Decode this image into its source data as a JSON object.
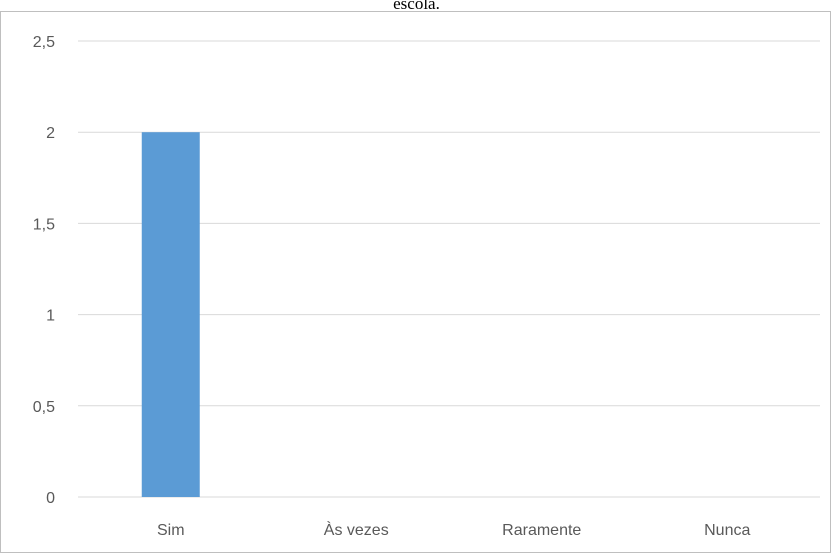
{
  "chart_data": {
    "type": "bar",
    "title": "escola.",
    "categories": [
      "Sim",
      "Às vezes",
      "Raramente",
      "Nunca"
    ],
    "values": [
      2,
      0,
      0,
      0
    ],
    "ylim": [
      0,
      2.5
    ],
    "yticks": [
      0,
      0.5,
      1,
      1.5,
      2,
      2.5
    ],
    "ytick_labels": [
      "0",
      "0,5",
      "1",
      "1,5",
      "2",
      "2,5"
    ],
    "xlabel": "",
    "ylabel": "",
    "grid": true,
    "legend": "none",
    "colors": {
      "bar": "#5b9bd5",
      "grid": "#d9d9d9",
      "axis_text": "#595959",
      "frame": "#bfbfbf"
    }
  }
}
